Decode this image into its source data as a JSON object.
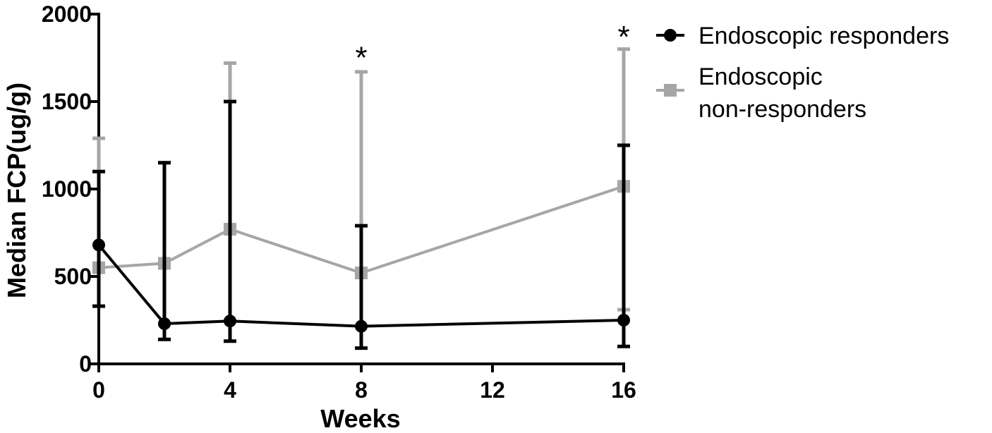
{
  "chart_data": {
    "type": "line",
    "title": "",
    "xlabel": "Weeks",
    "ylabel": "Median FCP(ug/g)",
    "xlim": [
      0,
      16
    ],
    "ylim": [
      0,
      2000
    ],
    "xticks": [
      0,
      4,
      8,
      12,
      16
    ],
    "yticks": [
      0,
      500,
      1000,
      1500,
      2000
    ],
    "grid": false,
    "legend_position": "right",
    "series": [
      {
        "name": "Endoscopic responders",
        "color": "#000000",
        "marker": "circle",
        "x": [
          0,
          2,
          4,
          8,
          16
        ],
        "y": [
          680,
          230,
          245,
          215,
          250
        ],
        "err_low": [
          330,
          140,
          130,
          90,
          100
        ],
        "err_high": [
          1100,
          1150,
          1500,
          790,
          1250
        ]
      },
      {
        "name": "Endoscopic non-responders",
        "legend_lines": [
          "Endoscopic",
          "non-responders"
        ],
        "color": "#a6a6a6",
        "marker": "square",
        "x": [
          0,
          2,
          4,
          8,
          16
        ],
        "y": [
          550,
          575,
          770,
          520,
          1015
        ],
        "err_low": [
          550,
          225,
          245,
          215,
          310
        ],
        "err_high": [
          1290,
          1150,
          1720,
          1670,
          1800
        ]
      }
    ],
    "annotations": [
      {
        "x": 8,
        "y": 1780,
        "text": "*"
      },
      {
        "x": 16,
        "y": 1900,
        "text": "*"
      }
    ]
  }
}
